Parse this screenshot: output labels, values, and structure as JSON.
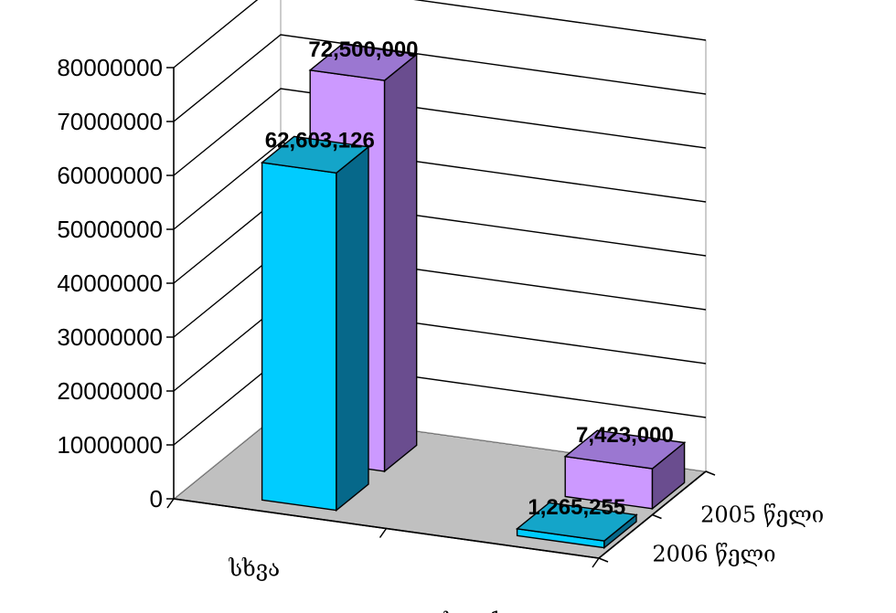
{
  "chart_data": {
    "type": "bar",
    "categories": [
      "სხვა",
      "სტიქია"
    ],
    "series": [
      {
        "name": "2005 წელი",
        "values": [
          72500000,
          7423000
        ],
        "labels": [
          "72,500,000",
          "7,423,000"
        ]
      },
      {
        "name": "2006 წელი",
        "values": [
          62603126,
          1265255
        ],
        "labels": [
          "62,603,126",
          "1,265,255"
        ]
      }
    ],
    "ylim": [
      0,
      80000000
    ],
    "yticks": [
      "0",
      "10000000",
      "20000000",
      "30000000",
      "40000000",
      "50000000",
      "60000000",
      "70000000",
      "80000000"
    ],
    "title": "",
    "xlabel": "",
    "ylabel": "",
    "grid": true,
    "projection": "3d"
  },
  "colors": {
    "s2005_front": "#cc99ff",
    "s2005_top": "#9b77d1",
    "s2005_side": "#6a4d8f",
    "s2006_front": "#00ccff",
    "s2006_top": "#14a5c9",
    "s2006_side": "#06688a",
    "floor": "#c0c0c0",
    "walls": "#ffffff",
    "grid": "#000000"
  }
}
